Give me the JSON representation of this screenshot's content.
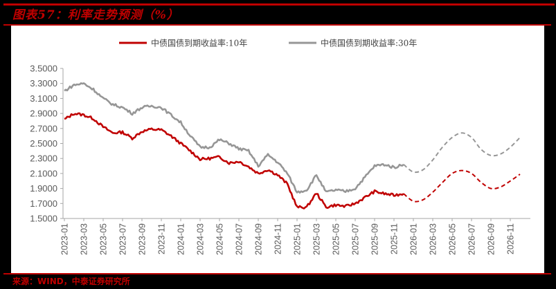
{
  "header": {
    "title": "图表57：利率走势预测（%）"
  },
  "footer": {
    "source": "来源：WIND，中泰证券研究所"
  },
  "colors": {
    "accent": "#c00000",
    "series_10y": "#c00000",
    "series_30y": "#969696",
    "axis": "#a6a6a6",
    "tick_text": "#595959"
  },
  "chart_data": {
    "type": "line",
    "title": "利率走势预测（%）",
    "xlabel": "",
    "ylabel": "",
    "ylim": [
      1.5,
      3.5
    ],
    "yticks": [
      "3.5000",
      "3.3000",
      "3.1000",
      "2.9000",
      "2.7000",
      "2.5000",
      "2.3000",
      "2.1000",
      "1.9000",
      "1.7000",
      "1.5000"
    ],
    "xticks": [
      "2023-01",
      "2023-03",
      "2023-05",
      "2023-07",
      "2023-09",
      "2023-11",
      "2024-01",
      "2024-03",
      "2024-05",
      "2024-07",
      "2024-09",
      "2024-11",
      "2025-01",
      "2025-03",
      "2025-05",
      "2025-07",
      "2025-09",
      "2025-11",
      "2026-01",
      "2026-03",
      "2026-05",
      "2026-07",
      "2026-09",
      "2026-11"
    ],
    "grid": false,
    "legend_position": "top",
    "x": [
      "2023-01",
      "2023-02",
      "2023-03",
      "2023-04",
      "2023-05",
      "2023-06",
      "2023-07",
      "2023-08",
      "2023-09",
      "2023-10",
      "2023-11",
      "2023-12",
      "2024-01",
      "2024-02",
      "2024-03",
      "2024-04",
      "2024-05",
      "2024-06",
      "2024-07",
      "2024-08",
      "2024-09",
      "2024-10",
      "2024-11",
      "2024-12",
      "2025-01",
      "2025-02",
      "2025-03",
      "2025-04",
      "2025-05",
      "2025-06",
      "2025-07",
      "2025-08",
      "2025-09",
      "2025-10",
      "2025-11",
      "2025-12",
      "2026-01",
      "2026-02",
      "2026-03",
      "2026-04",
      "2026-05",
      "2026-06",
      "2026-07",
      "2026-08",
      "2026-09",
      "2026-10",
      "2026-11",
      "2026-12"
    ],
    "forecast_start_index": 35,
    "series": [
      {
        "name": "中债国债到期收益率:10年",
        "color": "#c00000",
        "style": "solid (history), dashed (forecast)",
        "values": [
          2.82,
          2.9,
          2.88,
          2.83,
          2.72,
          2.64,
          2.65,
          2.57,
          2.66,
          2.69,
          2.68,
          2.6,
          2.5,
          2.4,
          2.29,
          2.3,
          2.32,
          2.24,
          2.26,
          2.19,
          2.1,
          2.15,
          2.08,
          1.96,
          1.65,
          1.65,
          1.84,
          1.65,
          1.68,
          1.66,
          1.7,
          1.78,
          1.86,
          1.83,
          1.81,
          1.83,
          1.73,
          1.75,
          1.85,
          1.98,
          2.1,
          2.14,
          2.1,
          1.98,
          1.9,
          1.92,
          2.0,
          2.09
        ]
      },
      {
        "name": "中债国债到期收益率:30年",
        "color": "#969696",
        "style": "solid (history), dashed (forecast)",
        "values": [
          3.2,
          3.28,
          3.3,
          3.22,
          3.1,
          3.02,
          2.98,
          2.9,
          2.98,
          3.0,
          2.98,
          2.88,
          2.78,
          2.6,
          2.45,
          2.45,
          2.55,
          2.5,
          2.43,
          2.4,
          2.2,
          2.35,
          2.25,
          2.1,
          1.85,
          1.88,
          2.08,
          1.85,
          1.88,
          1.86,
          1.9,
          2.05,
          2.2,
          2.22,
          2.18,
          2.22,
          2.12,
          2.15,
          2.28,
          2.45,
          2.58,
          2.64,
          2.58,
          2.42,
          2.34,
          2.36,
          2.45,
          2.58
        ]
      }
    ]
  }
}
